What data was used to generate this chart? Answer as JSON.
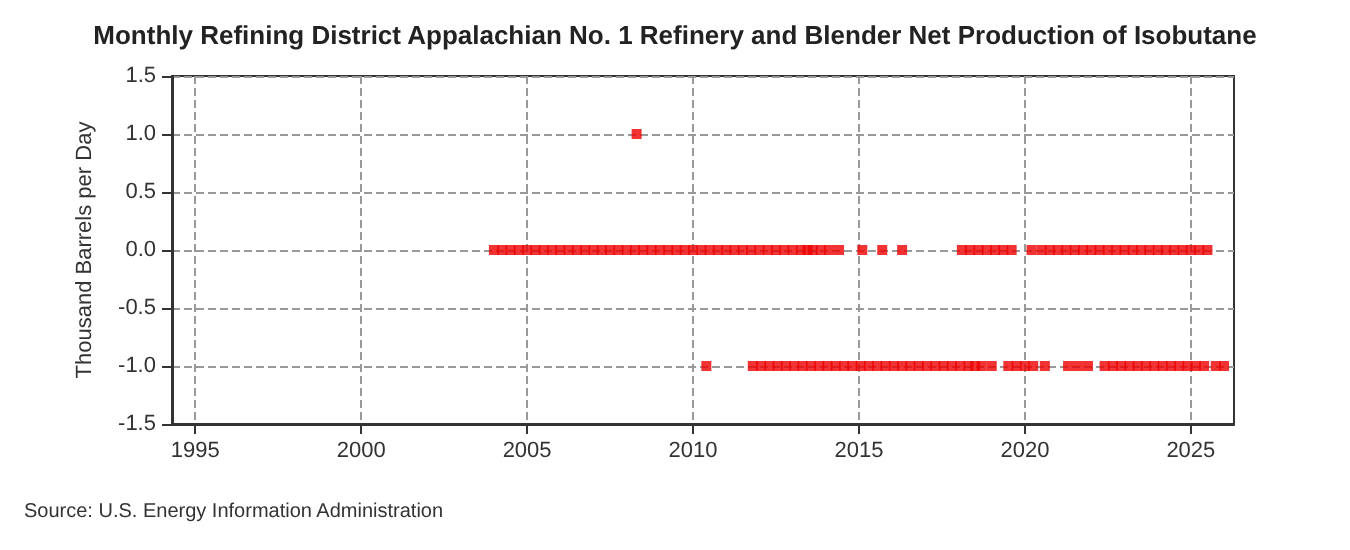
{
  "chart_data": {
    "type": "scatter",
    "title": "Monthly Refining District Appalachian No. 1 Refinery and Blender Net Production of Isobutane",
    "ylabel": "Thousand Barrels per Day",
    "annotations": [
      "Source: U.S. Energy Information Administration"
    ],
    "xlim": [
      1994.3,
      2026.3
    ],
    "xticks": [
      1995,
      2000,
      2005,
      2010,
      2015,
      2020,
      2025
    ],
    "ylim": [
      -1.5,
      1.5
    ],
    "yticks": [
      {
        "value": -1.5,
        "label": "-1.5"
      },
      {
        "value": -1,
        "label": "-1.0"
      },
      {
        "value": -0.5,
        "label": "-0.5"
      },
      {
        "value": 0,
        "label": "0.0"
      },
      {
        "value": 0.5,
        "label": "0.5"
      },
      {
        "value": 1,
        "label": "1.0"
      },
      {
        "value": 1.5,
        "label": "1.5"
      }
    ],
    "grid": true,
    "marker": "square",
    "series": [
      {
        "color": "#ee0000",
        "x": [
          2004,
          2004.25,
          2004.5,
          2004.75,
          2005,
          2005.25,
          2005.5,
          2005.75,
          2006,
          2006.25,
          2006.5,
          2006.75,
          2007,
          2007.25,
          2007.5,
          2007.75,
          2008,
          2008.25,
          2008.3,
          2008.5,
          2008.75,
          2009,
          2009.25,
          2009.5,
          2009.75,
          2010,
          2010.25,
          2010.5,
          2010.75,
          2011,
          2011.25,
          2011.5,
          2011.75,
          2012,
          2012.25,
          2012.5,
          2012.75,
          2013,
          2013.25,
          2013.45,
          2013.6,
          2013.85,
          2014.1,
          2014.4,
          2015.1,
          2015.7,
          2016.3,
          2018.1,
          2018.35,
          2018.6,
          2018.85,
          2019.1,
          2019.35,
          2019.6,
          2020.2,
          2020.5,
          2020.75,
          2021,
          2021.25,
          2021.5,
          2021.75,
          2022,
          2022.25,
          2022.5,
          2022.75,
          2023,
          2023.25,
          2023.5,
          2023.75,
          2024,
          2024.25,
          2024.5,
          2024.75,
          2025,
          2025.25,
          2025.5
        ],
        "values": [
          0,
          0,
          0,
          0,
          0,
          0,
          0,
          0,
          0,
          0,
          0,
          0,
          0,
          0,
          0,
          0,
          0,
          0,
          1,
          0,
          0,
          0,
          0,
          0,
          0,
          0,
          0,
          0,
          0,
          0,
          0,
          0,
          0,
          0,
          0,
          0,
          0,
          0,
          0,
          0,
          0,
          0,
          0,
          0,
          0,
          0,
          0,
          0,
          0,
          0,
          0,
          0,
          0,
          0,
          0,
          0,
          0,
          0,
          0,
          0,
          0,
          0,
          0,
          0,
          0,
          0,
          0,
          0,
          0,
          0,
          0,
          0,
          0,
          0,
          0,
          0
        ]
      },
      {
        "color": "#ee0000",
        "x": [
          2010.4,
          2011.8,
          2012.05,
          2012.3,
          2012.55,
          2012.8,
          2013.05,
          2013.3,
          2013.55,
          2013.8,
          2014.05,
          2014.3,
          2014.55,
          2014.8,
          2015.05,
          2015.3,
          2015.55,
          2015.8,
          2016.05,
          2016.3,
          2016.55,
          2016.8,
          2017.05,
          2017.3,
          2017.55,
          2017.8,
          2018.05,
          2018.3,
          2018.5,
          2018.7,
          2019,
          2019.5,
          2019.75,
          2020,
          2020.25,
          2020.6,
          2021.3,
          2021.6,
          2021.9,
          2022.4,
          2022.65,
          2022.9,
          2023.15,
          2023.4,
          2023.65,
          2023.9,
          2024.15,
          2024.4,
          2024.65,
          2024.9,
          2025.15,
          2025.4,
          2025.75,
          2026
        ],
        "values": [
          -1,
          -1,
          -1,
          -1,
          -1,
          -1,
          -1,
          -1,
          -1,
          -1,
          -1,
          -1,
          -1,
          -1,
          -1,
          -1,
          -1,
          -1,
          -1,
          -1,
          -1,
          -1,
          -1,
          -1,
          -1,
          -1,
          -1,
          -1,
          -1,
          -1,
          -1,
          -1,
          -1,
          -1,
          -1,
          -1,
          -1,
          -1,
          -1,
          -1,
          -1,
          -1,
          -1,
          -1,
          -1,
          -1,
          -1,
          -1,
          -1,
          -1,
          -1,
          -1,
          -1,
          -1
        ]
      }
    ]
  }
}
